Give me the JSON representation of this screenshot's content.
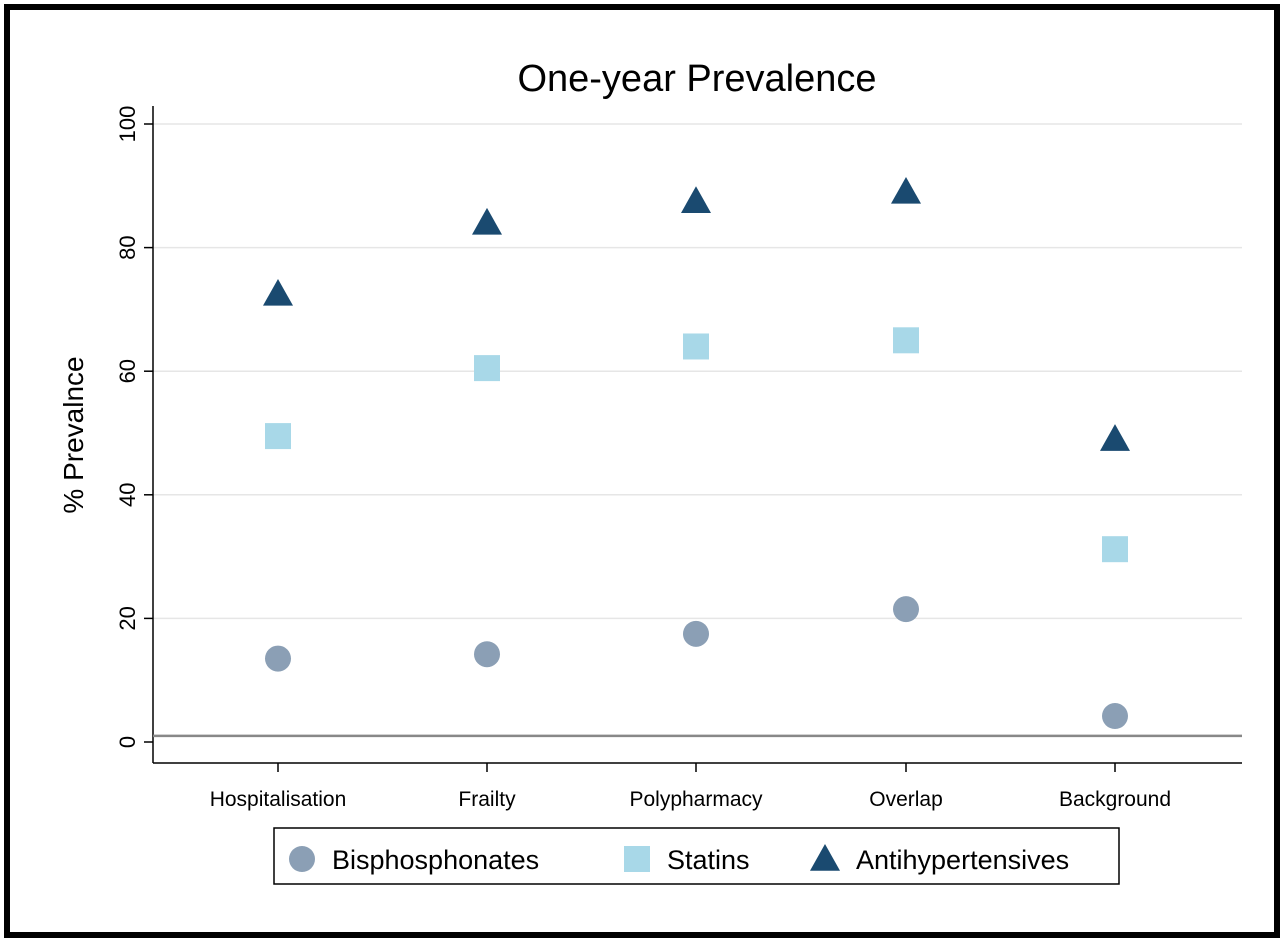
{
  "chart_data": {
    "type": "scatter",
    "title": "One-year Prevalence",
    "xlabel": "",
    "ylabel": "% Prevalnce",
    "ylim": [
      0,
      100
    ],
    "yticks": [
      0,
      20,
      40,
      60,
      80,
      100
    ],
    "grid": true,
    "legend_position": "bottom",
    "categories": [
      "Hospitalisation",
      "Frailty",
      "Polypharmacy",
      "Overlap",
      "Background"
    ],
    "reference_line": 1,
    "series": [
      {
        "name": "Bisphosphonates",
        "marker": "circle",
        "color": "#8b9fb5",
        "values": [
          13.5,
          14.2,
          17.5,
          21.5,
          4.2
        ]
      },
      {
        "name": "Statins",
        "marker": "square",
        "color": "#a8d8e8",
        "values": [
          49.5,
          60.5,
          64.0,
          65.0,
          31.2
        ]
      },
      {
        "name": "Antihypertensives",
        "marker": "triangle",
        "color": "#1a4a70",
        "values": [
          72.5,
          84.0,
          87.5,
          89.0,
          49.0
        ]
      }
    ]
  }
}
